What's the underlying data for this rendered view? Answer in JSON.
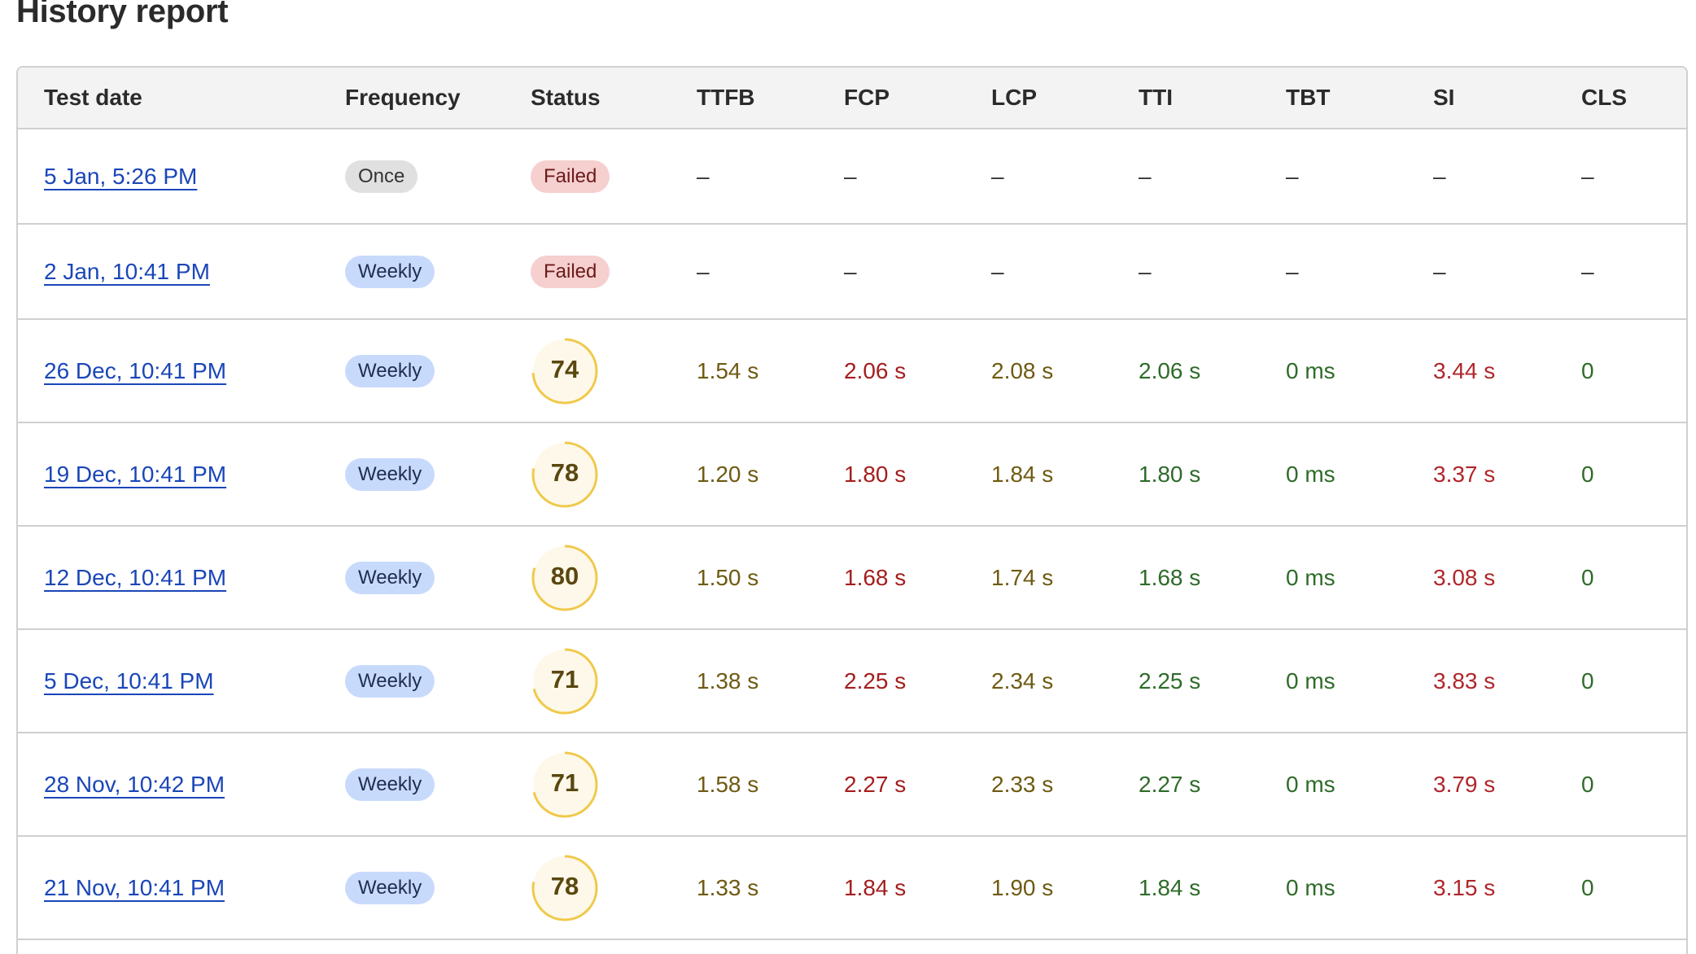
{
  "page": {
    "title": "History report"
  },
  "colors": {
    "link": "#1a46b8",
    "pill_once_bg": "#e0e0e0",
    "pill_weekly_bg": "#c8dafc",
    "pill_failed_bg": "#f6cfcf",
    "gauge_ring": "#f0c94a",
    "gauge_fill": "#fdf8e9",
    "metric_amber": "#6e5a12",
    "metric_red": "#a41e1e",
    "metric_green": "#2f6b2a"
  },
  "table": {
    "headers": [
      "Test date",
      "Frequency",
      "Status",
      "TTFB",
      "FCP",
      "LCP",
      "TTI",
      "TBT",
      "SI",
      "CLS"
    ],
    "rows": [
      {
        "date": "5 Jan, 5:26 PM",
        "frequency": "Once",
        "status": "Failed",
        "score": null,
        "ttfb": "–",
        "fcp": "–",
        "lcp": "–",
        "tti": "–",
        "tbt": "–",
        "si": "–",
        "cls": "–"
      },
      {
        "date": "2 Jan, 10:41 PM",
        "frequency": "Weekly",
        "status": "Failed",
        "score": null,
        "ttfb": "–",
        "fcp": "–",
        "lcp": "–",
        "tti": "–",
        "tbt": "–",
        "si": "–",
        "cls": "–"
      },
      {
        "date": "26 Dec, 10:41 PM",
        "frequency": "Weekly",
        "status": "",
        "score": "74",
        "ttfb": "1.54 s",
        "fcp": "2.06 s",
        "lcp": "2.08 s",
        "tti": "2.06 s",
        "tbt": "0 ms",
        "si": "3.44 s",
        "cls": "0"
      },
      {
        "date": "19 Dec, 10:41 PM",
        "frequency": "Weekly",
        "status": "",
        "score": "78",
        "ttfb": "1.20 s",
        "fcp": "1.80 s",
        "lcp": "1.84 s",
        "tti": "1.80 s",
        "tbt": "0 ms",
        "si": "3.37 s",
        "cls": "0"
      },
      {
        "date": "12 Dec, 10:41 PM",
        "frequency": "Weekly",
        "status": "",
        "score": "80",
        "ttfb": "1.50 s",
        "fcp": "1.68 s",
        "lcp": "1.74 s",
        "tti": "1.68 s",
        "tbt": "0 ms",
        "si": "3.08 s",
        "cls": "0"
      },
      {
        "date": "5 Dec, 10:41 PM",
        "frequency": "Weekly",
        "status": "",
        "score": "71",
        "ttfb": "1.38 s",
        "fcp": "2.25 s",
        "lcp": "2.34 s",
        "tti": "2.25 s",
        "tbt": "0 ms",
        "si": "3.83 s",
        "cls": "0"
      },
      {
        "date": "28 Nov, 10:42 PM",
        "frequency": "Weekly",
        "status": "",
        "score": "71",
        "ttfb": "1.58 s",
        "fcp": "2.27 s",
        "lcp": "2.33 s",
        "tti": "2.27 s",
        "tbt": "0 ms",
        "si": "3.79 s",
        "cls": "0"
      },
      {
        "date": "21 Nov, 10:41 PM",
        "frequency": "Weekly",
        "status": "",
        "score": "78",
        "ttfb": "1.33 s",
        "fcp": "1.84 s",
        "lcp": "1.90 s",
        "tti": "1.84 s",
        "tbt": "0 ms",
        "si": "3.15 s",
        "cls": "0"
      }
    ]
  }
}
